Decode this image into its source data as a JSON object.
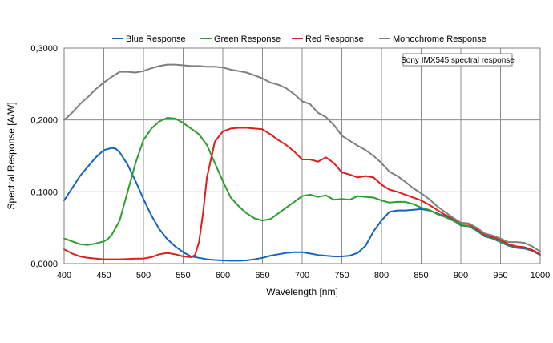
{
  "chart_data": {
    "type": "line",
    "title": "",
    "xlabel": "Wavelength [nm]",
    "ylabel": "Spectral Response [A/W]",
    "xlim": [
      400,
      1000
    ],
    "ylim": [
      0,
      0.3
    ],
    "x_ticks": [
      400,
      450,
      500,
      550,
      600,
      650,
      700,
      750,
      800,
      850,
      900,
      950,
      1000
    ],
    "y_ticks": [
      0,
      0.1,
      0.2,
      0.3
    ],
    "y_tick_labels": [
      "0,0000",
      "0,1000",
      "0,2000",
      "0,3000"
    ],
    "grid": true,
    "legend_position": "top",
    "annotation": "Sony IMX545 spectral response",
    "series": [
      {
        "name": "Blue Response",
        "color": "#1565c0",
        "points": [
          [
            400,
            0.088
          ],
          [
            410,
            0.105
          ],
          [
            420,
            0.122
          ],
          [
            430,
            0.135
          ],
          [
            440,
            0.148
          ],
          [
            450,
            0.158
          ],
          [
            460,
            0.161
          ],
          [
            465,
            0.16
          ],
          [
            470,
            0.155
          ],
          [
            480,
            0.138
          ],
          [
            490,
            0.115
          ],
          [
            500,
            0.09
          ],
          [
            510,
            0.067
          ],
          [
            520,
            0.048
          ],
          [
            530,
            0.034
          ],
          [
            540,
            0.024
          ],
          [
            550,
            0.016
          ],
          [
            560,
            0.01
          ],
          [
            570,
            0.008
          ],
          [
            580,
            0.006
          ],
          [
            590,
            0.005
          ],
          [
            600,
            0.0045
          ],
          [
            610,
            0.004
          ],
          [
            620,
            0.004
          ],
          [
            630,
            0.0045
          ],
          [
            640,
            0.006
          ],
          [
            650,
            0.008
          ],
          [
            660,
            0.011
          ],
          [
            670,
            0.013
          ],
          [
            680,
            0.015
          ],
          [
            690,
            0.016
          ],
          [
            700,
            0.016
          ],
          [
            710,
            0.014
          ],
          [
            720,
            0.012
          ],
          [
            730,
            0.011
          ],
          [
            740,
            0.01
          ],
          [
            750,
            0.01
          ],
          [
            760,
            0.011
          ],
          [
            770,
            0.015
          ],
          [
            780,
            0.025
          ],
          [
            790,
            0.045
          ],
          [
            800,
            0.06
          ],
          [
            810,
            0.072
          ],
          [
            820,
            0.074
          ],
          [
            830,
            0.074
          ],
          [
            840,
            0.075
          ],
          [
            850,
            0.076
          ],
          [
            860,
            0.074
          ],
          [
            870,
            0.07
          ],
          [
            880,
            0.066
          ],
          [
            890,
            0.061
          ],
          [
            900,
            0.053
          ],
          [
            910,
            0.052
          ],
          [
            920,
            0.046
          ],
          [
            930,
            0.038
          ],
          [
            940,
            0.035
          ],
          [
            950,
            0.03
          ],
          [
            960,
            0.025
          ],
          [
            970,
            0.022
          ],
          [
            980,
            0.021
          ],
          [
            990,
            0.018
          ],
          [
            1000,
            0.012
          ]
        ]
      },
      {
        "name": "Green Response",
        "color": "#2e9e2e",
        "points": [
          [
            400,
            0.035
          ],
          [
            410,
            0.031
          ],
          [
            420,
            0.027
          ],
          [
            430,
            0.026
          ],
          [
            440,
            0.028
          ],
          [
            450,
            0.031
          ],
          [
            455,
            0.034
          ],
          [
            460,
            0.04
          ],
          [
            470,
            0.06
          ],
          [
            480,
            0.1
          ],
          [
            490,
            0.14
          ],
          [
            500,
            0.172
          ],
          [
            510,
            0.188
          ],
          [
            520,
            0.198
          ],
          [
            530,
            0.203
          ],
          [
            540,
            0.202
          ],
          [
            550,
            0.196
          ],
          [
            560,
            0.188
          ],
          [
            570,
            0.18
          ],
          [
            580,
            0.165
          ],
          [
            590,
            0.14
          ],
          [
            600,
            0.115
          ],
          [
            610,
            0.092
          ],
          [
            620,
            0.08
          ],
          [
            630,
            0.07
          ],
          [
            640,
            0.063
          ],
          [
            650,
            0.06
          ],
          [
            660,
            0.062
          ],
          [
            670,
            0.07
          ],
          [
            680,
            0.078
          ],
          [
            690,
            0.086
          ],
          [
            700,
            0.094
          ],
          [
            710,
            0.096
          ],
          [
            720,
            0.093
          ],
          [
            730,
            0.095
          ],
          [
            740,
            0.089
          ],
          [
            750,
            0.09
          ],
          [
            760,
            0.089
          ],
          [
            770,
            0.094
          ],
          [
            780,
            0.093
          ],
          [
            790,
            0.092
          ],
          [
            800,
            0.088
          ],
          [
            810,
            0.085
          ],
          [
            820,
            0.086
          ],
          [
            830,
            0.086
          ],
          [
            840,
            0.083
          ],
          [
            850,
            0.078
          ],
          [
            860,
            0.075
          ],
          [
            870,
            0.069
          ],
          [
            880,
            0.065
          ],
          [
            890,
            0.06
          ],
          [
            900,
            0.054
          ],
          [
            910,
            0.052
          ],
          [
            920,
            0.047
          ],
          [
            930,
            0.039
          ],
          [
            940,
            0.036
          ],
          [
            950,
            0.031
          ],
          [
            960,
            0.026
          ],
          [
            970,
            0.023
          ],
          [
            980,
            0.022
          ],
          [
            990,
            0.019
          ],
          [
            1000,
            0.013
          ]
        ]
      },
      {
        "name": "Red Response",
        "color": "#e11d1d",
        "points": [
          [
            400,
            0.02
          ],
          [
            410,
            0.014
          ],
          [
            420,
            0.01
          ],
          [
            430,
            0.008
          ],
          [
            440,
            0.007
          ],
          [
            450,
            0.006
          ],
          [
            460,
            0.006
          ],
          [
            470,
            0.006
          ],
          [
            480,
            0.0065
          ],
          [
            490,
            0.007
          ],
          [
            500,
            0.007
          ],
          [
            510,
            0.009
          ],
          [
            520,
            0.013
          ],
          [
            530,
            0.015
          ],
          [
            540,
            0.013
          ],
          [
            550,
            0.01
          ],
          [
            560,
            0.009
          ],
          [
            565,
            0.012
          ],
          [
            570,
            0.03
          ],
          [
            575,
            0.07
          ],
          [
            580,
            0.12
          ],
          [
            590,
            0.17
          ],
          [
            600,
            0.184
          ],
          [
            610,
            0.188
          ],
          [
            620,
            0.189
          ],
          [
            630,
            0.189
          ],
          [
            640,
            0.188
          ],
          [
            650,
            0.187
          ],
          [
            660,
            0.18
          ],
          [
            670,
            0.172
          ],
          [
            680,
            0.165
          ],
          [
            690,
            0.156
          ],
          [
            700,
            0.145
          ],
          [
            710,
            0.145
          ],
          [
            720,
            0.142
          ],
          [
            730,
            0.148
          ],
          [
            740,
            0.14
          ],
          [
            750,
            0.127
          ],
          [
            760,
            0.124
          ],
          [
            770,
            0.12
          ],
          [
            780,
            0.122
          ],
          [
            790,
            0.12
          ],
          [
            800,
            0.11
          ],
          [
            810,
            0.103
          ],
          [
            820,
            0.1
          ],
          [
            830,
            0.096
          ],
          [
            840,
            0.092
          ],
          [
            850,
            0.088
          ],
          [
            860,
            0.082
          ],
          [
            870,
            0.075
          ],
          [
            880,
            0.068
          ],
          [
            890,
            0.063
          ],
          [
            900,
            0.056
          ],
          [
            910,
            0.055
          ],
          [
            920,
            0.048
          ],
          [
            930,
            0.04
          ],
          [
            940,
            0.037
          ],
          [
            950,
            0.033
          ],
          [
            960,
            0.027
          ],
          [
            970,
            0.024
          ],
          [
            980,
            0.023
          ],
          [
            990,
            0.019
          ],
          [
            1000,
            0.013
          ]
        ]
      },
      {
        "name": "Monochrome Response",
        "color": "#7f7f7f",
        "points": [
          [
            400,
            0.2
          ],
          [
            410,
            0.21
          ],
          [
            420,
            0.222
          ],
          [
            430,
            0.232
          ],
          [
            440,
            0.243
          ],
          [
            450,
            0.252
          ],
          [
            460,
            0.26
          ],
          [
            470,
            0.267
          ],
          [
            480,
            0.267
          ],
          [
            490,
            0.266
          ],
          [
            500,
            0.268
          ],
          [
            510,
            0.272
          ],
          [
            520,
            0.275
          ],
          [
            530,
            0.277
          ],
          [
            540,
            0.277
          ],
          [
            550,
            0.276
          ],
          [
            560,
            0.275
          ],
          [
            570,
            0.275
          ],
          [
            580,
            0.274
          ],
          [
            590,
            0.274
          ],
          [
            600,
            0.273
          ],
          [
            610,
            0.27
          ],
          [
            620,
            0.268
          ],
          [
            630,
            0.266
          ],
          [
            640,
            0.262
          ],
          [
            650,
            0.258
          ],
          [
            660,
            0.252
          ],
          [
            670,
            0.249
          ],
          [
            680,
            0.244
          ],
          [
            690,
            0.236
          ],
          [
            700,
            0.226
          ],
          [
            710,
            0.222
          ],
          [
            720,
            0.21
          ],
          [
            730,
            0.204
          ],
          [
            740,
            0.193
          ],
          [
            750,
            0.178
          ],
          [
            760,
            0.171
          ],
          [
            770,
            0.164
          ],
          [
            780,
            0.158
          ],
          [
            790,
            0.15
          ],
          [
            800,
            0.14
          ],
          [
            810,
            0.128
          ],
          [
            820,
            0.122
          ],
          [
            830,
            0.114
          ],
          [
            840,
            0.105
          ],
          [
            850,
            0.098
          ],
          [
            860,
            0.09
          ],
          [
            870,
            0.08
          ],
          [
            880,
            0.072
          ],
          [
            890,
            0.064
          ],
          [
            900,
            0.057
          ],
          [
            910,
            0.056
          ],
          [
            920,
            0.05
          ],
          [
            930,
            0.042
          ],
          [
            940,
            0.039
          ],
          [
            950,
            0.035
          ],
          [
            960,
            0.03
          ],
          [
            970,
            0.03
          ],
          [
            980,
            0.029
          ],
          [
            990,
            0.024
          ],
          [
            1000,
            0.017
          ]
        ]
      }
    ]
  }
}
